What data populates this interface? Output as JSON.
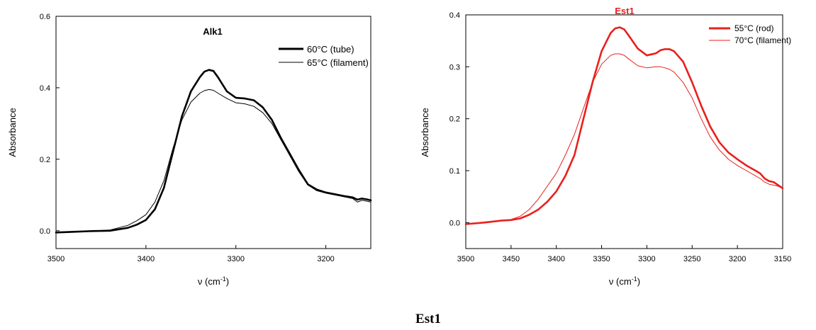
{
  "caption": "Est1",
  "chart_data": [
    {
      "type": "line",
      "title": "Alk1",
      "title_color": "#000000",
      "xlabel_main": "ν (cm",
      "xlabel_sup": "-1",
      "xlabel_end": ")",
      "ylabel": "Absorbance",
      "xlim": [
        3500,
        3150
      ],
      "ylim": [
        -0.05,
        0.6
      ],
      "xticks": [
        3500,
        3400,
        3300,
        3200
      ],
      "xtick_labels": [
        "3500",
        "3400",
        "3300",
        "3200"
      ],
      "yticks": [
        0.0,
        0.2,
        0.4,
        0.6
      ],
      "ytick_labels": [
        "0.0",
        "0.2",
        "0.4",
        "0.6"
      ],
      "legend_position": "top-right",
      "series": [
        {
          "name": "60°C (tube)",
          "color": "#000000",
          "weight": "thick",
          "x": [
            3500,
            3480,
            3460,
            3440,
            3420,
            3410,
            3400,
            3390,
            3380,
            3370,
            3360,
            3350,
            3340,
            3335,
            3330,
            3325,
            3320,
            3310,
            3300,
            3290,
            3280,
            3270,
            3260,
            3250,
            3240,
            3230,
            3220,
            3210,
            3200,
            3190,
            3180,
            3170,
            3165,
            3160,
            3155,
            3150
          ],
          "y": [
            -0.005,
            -0.003,
            -0.001,
            0.0,
            0.008,
            0.017,
            0.03,
            0.06,
            0.12,
            0.22,
            0.32,
            0.39,
            0.43,
            0.445,
            0.45,
            0.447,
            0.43,
            0.39,
            0.372,
            0.37,
            0.365,
            0.345,
            0.31,
            0.26,
            0.215,
            0.17,
            0.13,
            0.115,
            0.107,
            0.102,
            0.097,
            0.093,
            0.087,
            0.09,
            0.088,
            0.085
          ]
        },
        {
          "name": "65°C (filament)",
          "color": "#000000",
          "weight": "thin",
          "x": [
            3500,
            3480,
            3460,
            3440,
            3420,
            3410,
            3400,
            3390,
            3380,
            3370,
            3360,
            3350,
            3340,
            3335,
            3330,
            3325,
            3320,
            3310,
            3300,
            3290,
            3280,
            3270,
            3260,
            3250,
            3240,
            3230,
            3220,
            3210,
            3200,
            3190,
            3180,
            3170,
            3165,
            3160,
            3155,
            3150
          ],
          "y": [
            -0.005,
            -0.003,
            -0.001,
            0.002,
            0.015,
            0.028,
            0.045,
            0.08,
            0.14,
            0.23,
            0.31,
            0.36,
            0.385,
            0.392,
            0.395,
            0.393,
            0.385,
            0.37,
            0.358,
            0.355,
            0.348,
            0.33,
            0.3,
            0.255,
            0.21,
            0.165,
            0.128,
            0.112,
            0.105,
            0.1,
            0.095,
            0.09,
            0.08,
            0.085,
            0.083,
            0.08
          ]
        }
      ]
    },
    {
      "type": "line",
      "title": "Est1",
      "title_color": "#e8201c",
      "xlabel_main": "ν (cm",
      "xlabel_sup": "-1",
      "xlabel_end": ")",
      "ylabel": "Absorbance",
      "xlim": [
        3500,
        3150
      ],
      "ylim": [
        -0.05,
        0.4
      ],
      "xticks": [
        3500,
        3450,
        3400,
        3350,
        3300,
        3250,
        3200,
        3150
      ],
      "xtick_labels": [
        "3500",
        "3450",
        "3400",
        "3350",
        "3300",
        "3250",
        "3200",
        "3150"
      ],
      "yticks": [
        0.0,
        0.1,
        0.2,
        0.3,
        0.4
      ],
      "ytick_labels": [
        "0.0",
        "0.1",
        "0.2",
        "0.3",
        "0.4"
      ],
      "legend_position": "top-right",
      "series": [
        {
          "name": "55°C (rod)",
          "color": "#e8201c",
          "weight": "thick",
          "x": [
            3500,
            3480,
            3460,
            3450,
            3440,
            3430,
            3420,
            3410,
            3400,
            3390,
            3380,
            3370,
            3360,
            3350,
            3340,
            3335,
            3330,
            3325,
            3320,
            3310,
            3300,
            3290,
            3285,
            3280,
            3275,
            3270,
            3260,
            3250,
            3240,
            3230,
            3220,
            3210,
            3200,
            3190,
            3180,
            3175,
            3170,
            3165,
            3160,
            3155,
            3150
          ],
          "y": [
            -0.003,
            0.0,
            0.004,
            0.005,
            0.008,
            0.015,
            0.025,
            0.04,
            0.06,
            0.09,
            0.13,
            0.2,
            0.27,
            0.33,
            0.365,
            0.374,
            0.376,
            0.372,
            0.36,
            0.335,
            0.322,
            0.326,
            0.332,
            0.334,
            0.334,
            0.33,
            0.31,
            0.27,
            0.225,
            0.185,
            0.155,
            0.135,
            0.122,
            0.11,
            0.1,
            0.095,
            0.085,
            0.08,
            0.078,
            0.072,
            0.066
          ]
        },
        {
          "name": "70°C  (filament)",
          "color": "#e8201c",
          "weight": "thin",
          "x": [
            3500,
            3480,
            3460,
            3450,
            3440,
            3430,
            3420,
            3410,
            3400,
            3390,
            3380,
            3370,
            3360,
            3350,
            3340,
            3335,
            3330,
            3325,
            3320,
            3310,
            3300,
            3290,
            3285,
            3280,
            3275,
            3270,
            3260,
            3250,
            3240,
            3230,
            3220,
            3210,
            3200,
            3190,
            3180,
            3175,
            3170,
            3165,
            3160,
            3155,
            3150
          ],
          "y": [
            -0.003,
            0.0,
            0.004,
            0.006,
            0.012,
            0.025,
            0.045,
            0.07,
            0.095,
            0.13,
            0.17,
            0.22,
            0.27,
            0.305,
            0.322,
            0.325,
            0.325,
            0.322,
            0.315,
            0.302,
            0.298,
            0.3,
            0.3,
            0.298,
            0.295,
            0.29,
            0.27,
            0.24,
            0.2,
            0.165,
            0.14,
            0.122,
            0.11,
            0.1,
            0.09,
            0.085,
            0.078,
            0.074,
            0.072,
            0.07,
            0.066
          ]
        }
      ]
    }
  ]
}
